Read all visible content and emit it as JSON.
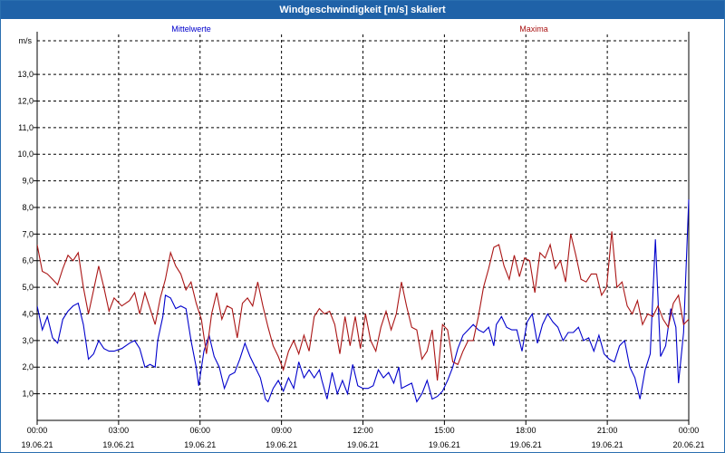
{
  "chart_data": {
    "type": "line",
    "title": "Windgeschwindigkeit [m/s] skaliert",
    "ylabel": "m/s",
    "ylim": [
      0,
      14.5
    ],
    "xlim_hours": [
      0,
      24
    ],
    "grid": true,
    "y_ticks": [
      "1,0",
      "2,0",
      "3,0",
      "4,0",
      "5,0",
      "6,0",
      "7,0",
      "8,0",
      "9,0",
      "10,0",
      "11,0",
      "12,0",
      "13,0"
    ],
    "x_ticks": [
      {
        "time": "00:00",
        "date": "19.06.21"
      },
      {
        "time": "03:00",
        "date": "19.06.21"
      },
      {
        "time": "06:00",
        "date": "19.06.21"
      },
      {
        "time": "09:00",
        "date": "19.06.21"
      },
      {
        "time": "12:00",
        "date": "19.06.21"
      },
      {
        "time": "15:00",
        "date": "19.06.21"
      },
      {
        "time": "18:00",
        "date": "19.06.21"
      },
      {
        "time": "21:00",
        "date": "19.06.21"
      },
      {
        "time": "00:00",
        "date": "20.06.21"
      }
    ],
    "series": [
      {
        "name": "Mittelwerte",
        "color": "#0000cc",
        "points": [
          [
            0,
            4.3
          ],
          [
            0.2,
            3.4
          ],
          [
            0.4,
            3.9
          ],
          [
            0.6,
            3.1
          ],
          [
            0.8,
            2.9
          ],
          [
            1.0,
            3.8
          ],
          [
            1.2,
            4.1
          ],
          [
            1.4,
            4.3
          ],
          [
            1.6,
            4.4
          ],
          [
            1.8,
            3.6
          ],
          [
            2.0,
            2.3
          ],
          [
            2.2,
            2.5
          ],
          [
            2.4,
            3.0
          ],
          [
            2.6,
            2.7
          ],
          [
            2.8,
            2.6
          ],
          [
            3.0,
            2.6
          ],
          [
            3.3,
            2.7
          ],
          [
            3.6,
            2.9
          ],
          [
            3.8,
            3.0
          ],
          [
            4.0,
            2.7
          ],
          [
            4.2,
            2.0
          ],
          [
            4.4,
            2.1
          ],
          [
            4.6,
            2.0
          ],
          [
            4.7,
            3.0
          ],
          [
            4.9,
            3.9
          ],
          [
            5.0,
            4.7
          ],
          [
            5.2,
            4.6
          ],
          [
            5.4,
            4.2
          ],
          [
            5.6,
            4.3
          ],
          [
            5.8,
            4.2
          ],
          [
            6.0,
            3.0
          ],
          [
            6.2,
            2.0
          ],
          [
            6.3,
            1.3
          ],
          [
            6.5,
            2.6
          ],
          [
            6.7,
            3.2
          ],
          [
            6.9,
            2.4
          ],
          [
            7.1,
            2.0
          ],
          [
            7.3,
            1.2
          ],
          [
            7.5,
            1.7
          ],
          [
            7.7,
            1.8
          ],
          [
            7.9,
            2.3
          ],
          [
            8.1,
            2.9
          ],
          [
            8.3,
            2.4
          ],
          [
            8.5,
            2.0
          ],
          [
            8.7,
            1.6
          ],
          [
            8.9,
            0.8
          ],
          [
            9.0,
            0.7
          ],
          [
            9.2,
            1.2
          ],
          [
            9.4,
            1.5
          ],
          [
            9.6,
            1.1
          ],
          [
            9.8,
            1.6
          ],
          [
            10.0,
            1.2
          ],
          [
            10.2,
            2.2
          ],
          [
            10.4,
            1.6
          ],
          [
            10.6,
            1.9
          ],
          [
            10.8,
            1.6
          ],
          [
            11.0,
            1.9
          ],
          [
            11.1,
            1.5
          ],
          [
            11.3,
            0.8
          ],
          [
            11.5,
            1.8
          ],
          [
            11.7,
            1.0
          ],
          [
            11.9,
            1.5
          ],
          [
            12.1,
            1.0
          ],
          [
            12.3,
            2.1
          ],
          [
            12.5,
            1.3
          ],
          [
            12.7,
            1.2
          ],
          [
            12.9,
            1.2
          ],
          [
            13.1,
            1.3
          ],
          [
            13.3,
            1.9
          ],
          [
            13.5,
            1.6
          ],
          [
            13.7,
            1.8
          ],
          [
            13.9,
            1.4
          ],
          [
            14.1,
            2.0
          ],
          [
            14.2,
            1.2
          ],
          [
            14.4,
            1.3
          ],
          [
            14.6,
            1.4
          ],
          [
            14.8,
            0.7
          ],
          [
            15.0,
            1.0
          ],
          [
            15.2,
            1.5
          ],
          [
            15.4,
            0.8
          ],
          [
            15.6,
            0.9
          ],
          [
            15.8,
            1.1
          ],
          [
            16.0,
            1.5
          ],
          [
            16.2,
            2.0
          ],
          [
            16.4,
            2.7
          ],
          [
            16.6,
            3.2
          ],
          [
            16.8,
            3.4
          ],
          [
            17.0,
            3.6
          ],
          [
            17.2,
            3.4
          ],
          [
            17.4,
            3.3
          ],
          [
            17.6,
            3.5
          ],
          [
            17.8,
            2.8
          ],
          [
            17.9,
            3.6
          ],
          [
            18.1,
            3.9
          ],
          [
            18.3,
            3.5
          ],
          [
            18.5,
            3.4
          ],
          [
            18.7,
            3.4
          ],
          [
            18.9,
            2.6
          ],
          [
            19.1,
            3.7
          ],
          [
            19.3,
            4.0
          ],
          [
            19.5,
            2.9
          ],
          [
            19.7,
            3.6
          ],
          [
            19.9,
            4.0
          ],
          [
            20.1,
            3.7
          ],
          [
            20.3,
            3.5
          ],
          [
            20.5,
            3.0
          ],
          [
            20.7,
            3.3
          ],
          [
            20.9,
            3.3
          ],
          [
            21.1,
            3.5
          ],
          [
            21.3,
            3.0
          ],
          [
            21.5,
            3.1
          ],
          [
            21.7,
            2.6
          ],
          [
            21.9,
            3.2
          ],
          [
            22.1,
            2.5
          ],
          [
            22.3,
            2.3
          ],
          [
            22.5,
            2.2
          ],
          [
            22.7,
            2.8
          ],
          [
            22.9,
            3.0
          ],
          [
            23.1,
            2.0
          ],
          [
            23.3,
            1.6
          ],
          [
            23.5,
            0.8
          ],
          [
            23.7,
            1.9
          ],
          [
            23.9,
            2.5
          ],
          [
            24.1,
            6.8
          ],
          [
            24.3,
            2.4
          ],
          [
            24.5,
            2.8
          ],
          [
            24.7,
            4.2
          ],
          [
            24.9,
            3.5
          ],
          [
            25.0,
            1.4
          ],
          [
            25.2,
            3.3
          ],
          [
            25.4,
            8.3
          ]
        ]
      },
      {
        "name": "Maxima",
        "color": "#aa1515",
        "points": [
          [
            0,
            6.6
          ],
          [
            0.2,
            5.6
          ],
          [
            0.4,
            5.5
          ],
          [
            0.6,
            5.3
          ],
          [
            0.8,
            5.1
          ],
          [
            1.0,
            5.7
          ],
          [
            1.2,
            6.2
          ],
          [
            1.4,
            6.0
          ],
          [
            1.6,
            6.3
          ],
          [
            1.8,
            5.0
          ],
          [
            2.0,
            4.0
          ],
          [
            2.2,
            4.9
          ],
          [
            2.4,
            5.8
          ],
          [
            2.6,
            5.0
          ],
          [
            2.8,
            4.1
          ],
          [
            3.0,
            4.6
          ],
          [
            3.3,
            4.3
          ],
          [
            3.6,
            4.5
          ],
          [
            3.8,
            4.8
          ],
          [
            4.0,
            4.0
          ],
          [
            4.2,
            4.8
          ],
          [
            4.4,
            4.2
          ],
          [
            4.6,
            3.6
          ],
          [
            4.8,
            4.6
          ],
          [
            5.0,
            5.3
          ],
          [
            5.2,
            6.3
          ],
          [
            5.4,
            5.8
          ],
          [
            5.6,
            5.5
          ],
          [
            5.8,
            4.9
          ],
          [
            6.0,
            5.2
          ],
          [
            6.2,
            4.4
          ],
          [
            6.4,
            3.8
          ],
          [
            6.6,
            2.5
          ],
          [
            6.8,
            4.0
          ],
          [
            7.0,
            4.8
          ],
          [
            7.2,
            3.8
          ],
          [
            7.4,
            4.3
          ],
          [
            7.6,
            4.2
          ],
          [
            7.8,
            3.1
          ],
          [
            8.0,
            4.4
          ],
          [
            8.2,
            4.6
          ],
          [
            8.4,
            4.3
          ],
          [
            8.6,
            5.2
          ],
          [
            8.8,
            4.3
          ],
          [
            9.0,
            3.5
          ],
          [
            9.2,
            2.8
          ],
          [
            9.4,
            2.4
          ],
          [
            9.6,
            1.9
          ],
          [
            9.8,
            2.6
          ],
          [
            10.0,
            3.0
          ],
          [
            10.2,
            2.5
          ],
          [
            10.4,
            3.2
          ],
          [
            10.6,
            2.6
          ],
          [
            10.8,
            3.9
          ],
          [
            11.0,
            4.2
          ],
          [
            11.2,
            4.0
          ],
          [
            11.4,
            4.1
          ],
          [
            11.6,
            3.6
          ],
          [
            11.8,
            2.5
          ],
          [
            12.0,
            3.9
          ],
          [
            12.2,
            2.8
          ],
          [
            12.4,
            3.9
          ],
          [
            12.6,
            2.7
          ],
          [
            12.8,
            4.0
          ],
          [
            13.0,
            3.0
          ],
          [
            13.2,
            2.6
          ],
          [
            13.4,
            3.5
          ],
          [
            13.6,
            4.1
          ],
          [
            13.8,
            3.4
          ],
          [
            14.0,
            4.0
          ],
          [
            14.2,
            5.2
          ],
          [
            14.4,
            4.3
          ],
          [
            14.6,
            3.5
          ],
          [
            14.8,
            3.4
          ],
          [
            15.0,
            2.3
          ],
          [
            15.2,
            2.6
          ],
          [
            15.4,
            3.4
          ],
          [
            15.6,
            1.5
          ],
          [
            15.8,
            3.6
          ],
          [
            16.0,
            3.4
          ],
          [
            16.2,
            2.2
          ],
          [
            16.4,
            2.1
          ],
          [
            16.6,
            2.6
          ],
          [
            16.8,
            3.0
          ],
          [
            17.0,
            3.0
          ],
          [
            17.2,
            3.9
          ],
          [
            17.4,
            5.0
          ],
          [
            17.6,
            5.7
          ],
          [
            17.8,
            6.5
          ],
          [
            18.0,
            6.6
          ],
          [
            18.2,
            5.8
          ],
          [
            18.4,
            5.3
          ],
          [
            18.6,
            6.2
          ],
          [
            18.8,
            5.4
          ],
          [
            19.0,
            6.1
          ],
          [
            19.2,
            6.0
          ],
          [
            19.4,
            4.8
          ],
          [
            19.6,
            6.3
          ],
          [
            19.8,
            6.1
          ],
          [
            20.0,
            6.6
          ],
          [
            20.2,
            5.7
          ],
          [
            20.4,
            6.0
          ],
          [
            20.6,
            5.2
          ],
          [
            20.8,
            7.0
          ],
          [
            21.0,
            6.2
          ],
          [
            21.2,
            5.3
          ],
          [
            21.4,
            5.2
          ],
          [
            21.6,
            5.5
          ],
          [
            21.8,
            5.5
          ],
          [
            22.0,
            4.7
          ],
          [
            22.2,
            5.0
          ],
          [
            22.4,
            7.1
          ],
          [
            22.6,
            5.0
          ],
          [
            22.8,
            5.2
          ],
          [
            23.0,
            4.3
          ],
          [
            23.2,
            4.0
          ],
          [
            23.4,
            4.5
          ],
          [
            23.6,
            3.6
          ],
          [
            23.8,
            4.0
          ],
          [
            24.0,
            3.9
          ],
          [
            24.2,
            4.3
          ],
          [
            24.4,
            3.8
          ],
          [
            24.6,
            3.5
          ],
          [
            24.8,
            4.4
          ],
          [
            25.0,
            4.7
          ],
          [
            25.2,
            3.6
          ],
          [
            25.4,
            3.8
          ]
        ]
      }
    ]
  }
}
